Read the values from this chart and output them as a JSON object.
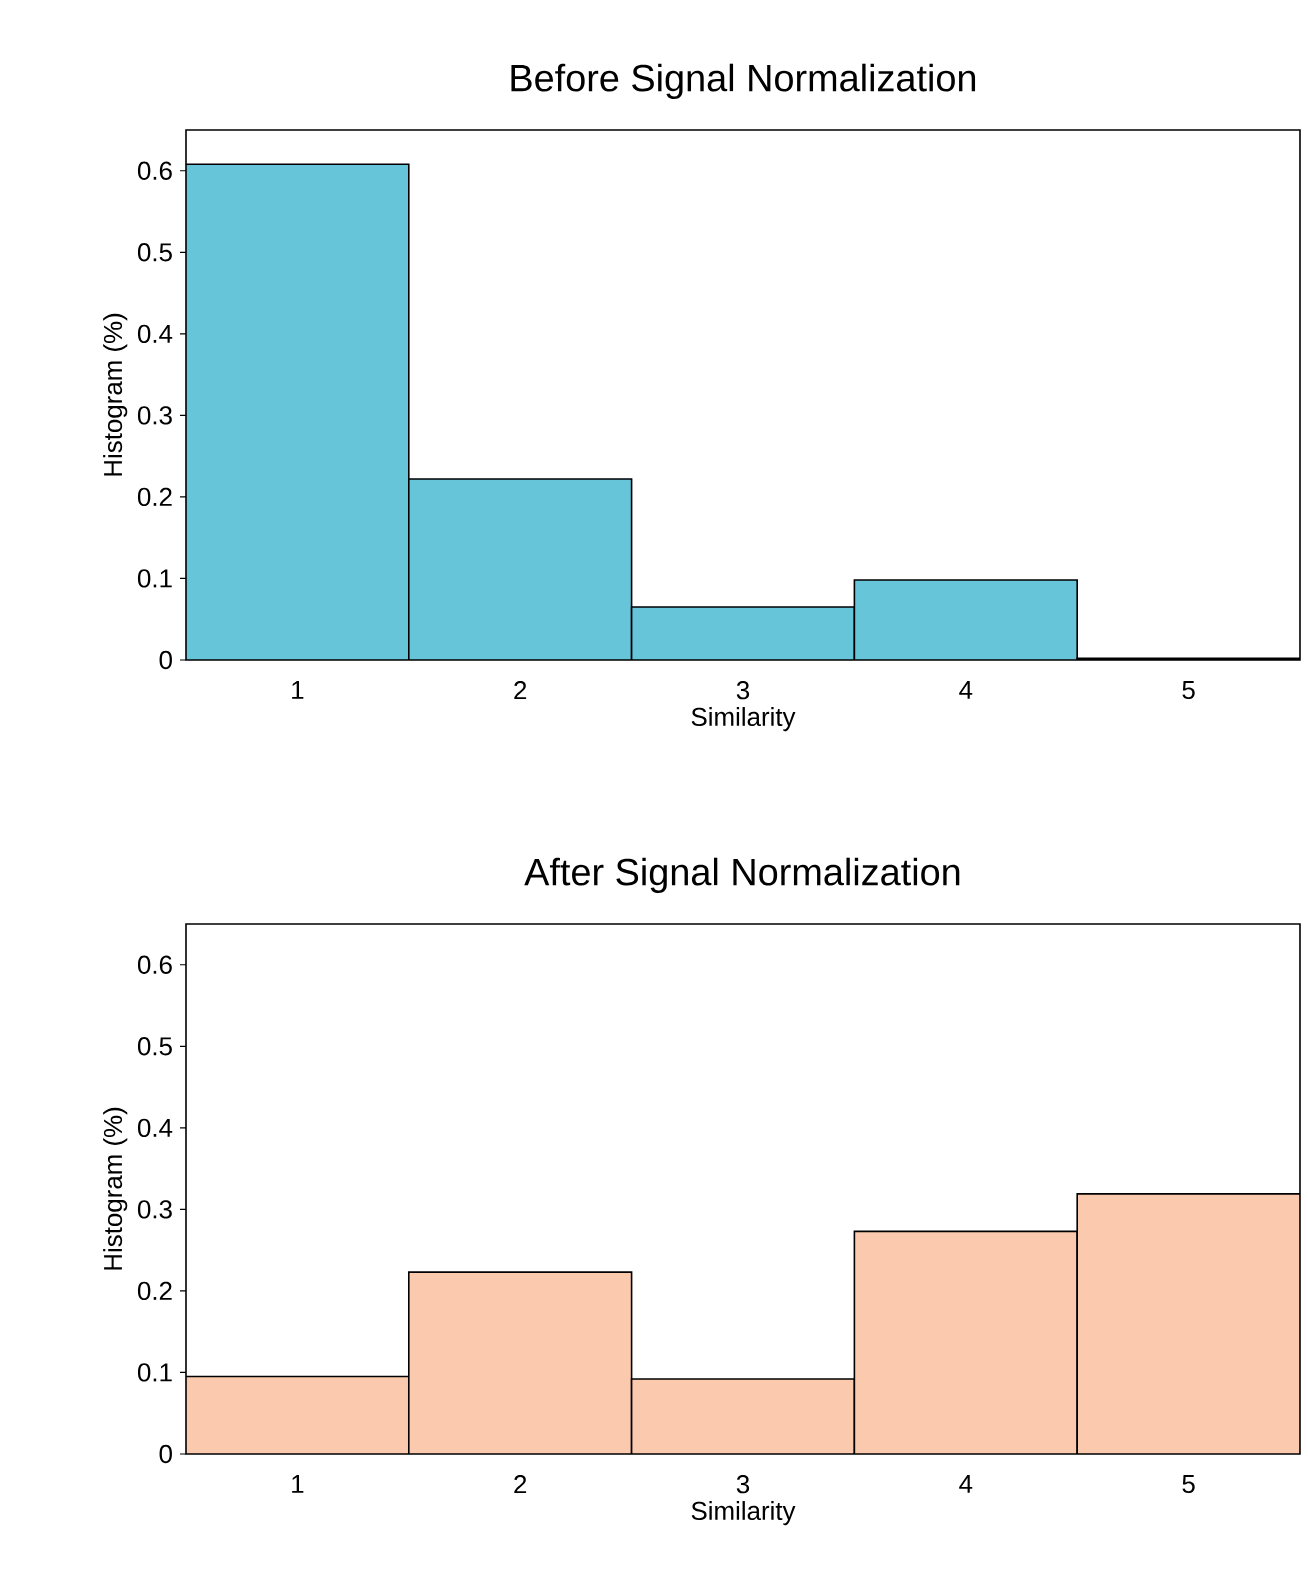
{
  "chart_data": [
    {
      "type": "histogram",
      "title": "Before Signal Normalization",
      "xlabel": "Similarity",
      "ylabel": "Histogram (%)",
      "bins": [
        0.5,
        1.5,
        2.5,
        3.5,
        4.5,
        5.5
      ],
      "values": [
        0.608,
        0.222,
        0.065,
        0.098,
        0.002
      ],
      "color": "#67c5da",
      "xlim": [
        0.5,
        5.5
      ],
      "ylim": [
        0,
        0.65
      ],
      "xticks": [
        1,
        2,
        3,
        4,
        5
      ],
      "yticks": [
        0,
        0.1,
        0.2,
        0.3,
        0.4,
        0.5,
        0.6
      ]
    },
    {
      "type": "histogram",
      "title": "After Signal Normalization",
      "xlabel": "Similarity",
      "ylabel": "Histogram (%)",
      "bins": [
        0.5,
        1.5,
        2.5,
        3.5,
        4.5,
        5.5
      ],
      "values": [
        0.095,
        0.223,
        0.092,
        0.273,
        0.319
      ],
      "color": "#fbcaae",
      "xlim": [
        0.5,
        5.5
      ],
      "ylim": [
        0,
        0.65
      ],
      "xticks": [
        1,
        2,
        3,
        4,
        5
      ],
      "yticks": [
        0,
        0.1,
        0.2,
        0.3,
        0.4,
        0.5,
        0.6
      ]
    }
  ]
}
